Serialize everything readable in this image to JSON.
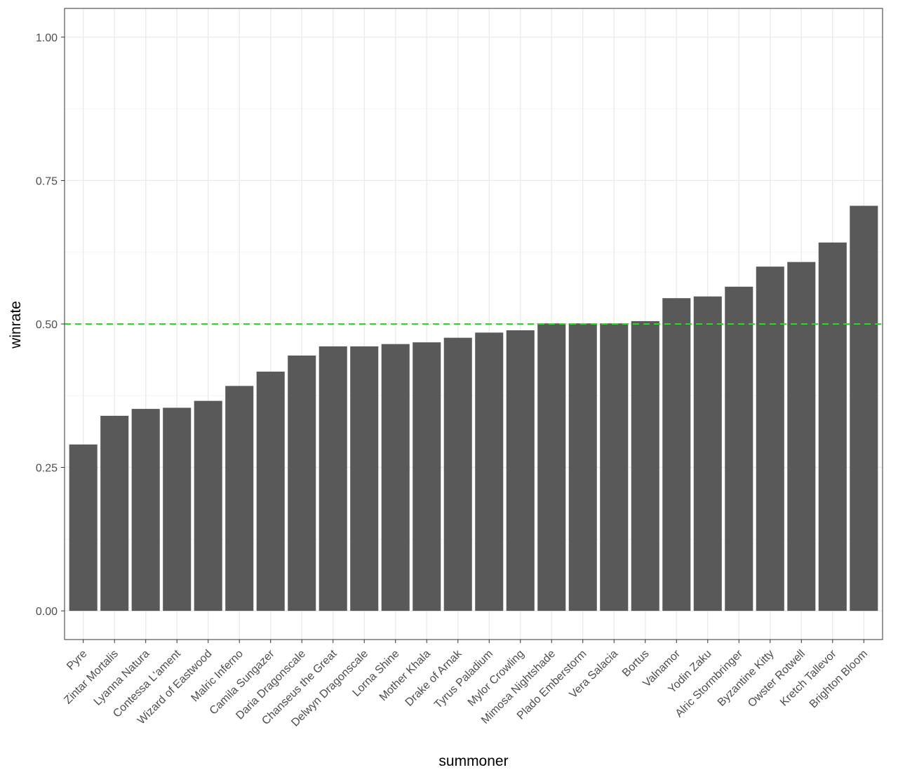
{
  "chart_data": {
    "type": "bar",
    "title": "",
    "xlabel": "summoner",
    "ylabel": "winrate",
    "ylim": [
      -0.05,
      1.05
    ],
    "yticks": [
      0.0,
      0.25,
      0.5,
      0.75,
      1.0
    ],
    "ytick_labels": [
      "0.00",
      "0.25",
      "0.50",
      "0.75",
      "1.00"
    ],
    "grid": true,
    "legend": "none",
    "categories": [
      "Pyre",
      "Zintar Mortalis",
      "Lyanna Natura",
      "Contessa L'ament",
      "Wizard of Eastwood",
      "Malric Inferno",
      "Camila Sungazer",
      "Daria Dragonscale",
      "Chanseus the Great",
      "Delwyn Dragonscale",
      "Lorna Shine",
      "Mother Khala",
      "Drake of Arnak",
      "Tyrus Paladium",
      "Mylor Crowling",
      "Mimosa Nightshade",
      "Plado Emberstorm",
      "Vera Salacia",
      "Bortus",
      "Valnamor",
      "Yodin Zaku",
      "Alric Stormbringer",
      "Byzantine Kitty",
      "Owster Rotwell",
      "Kretch Tallevor",
      "Brighton Bloom"
    ],
    "values": [
      0.29,
      0.34,
      0.352,
      0.354,
      0.366,
      0.392,
      0.417,
      0.445,
      0.461,
      0.461,
      0.465,
      0.468,
      0.476,
      0.485,
      0.489,
      0.501,
      0.501,
      0.501,
      0.505,
      0.545,
      0.548,
      0.565,
      0.6,
      0.608,
      0.642,
      0.706
    ],
    "reference_line": {
      "y": 0.5,
      "style": "dashed"
    },
    "colors": {
      "bar": "#595959",
      "reference_line": "#22dd22",
      "grid_major": "#ebebeb",
      "grid_minor": "#f4f4f4",
      "panel_border": "#333333",
      "tick_label": "#4d4d4d"
    }
  }
}
